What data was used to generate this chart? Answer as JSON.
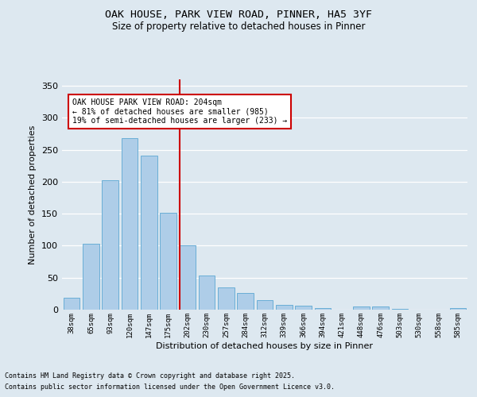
{
  "title1": "OAK HOUSE, PARK VIEW ROAD, PINNER, HA5 3YF",
  "title2": "Size of property relative to detached houses in Pinner",
  "xlabel": "Distribution of detached houses by size in Pinner",
  "ylabel": "Number of detached properties",
  "categories": [
    "38sqm",
    "65sqm",
    "93sqm",
    "120sqm",
    "147sqm",
    "175sqm",
    "202sqm",
    "230sqm",
    "257sqm",
    "284sqm",
    "312sqm",
    "339sqm",
    "366sqm",
    "394sqm",
    "421sqm",
    "448sqm",
    "476sqm",
    "503sqm",
    "530sqm",
    "558sqm",
    "585sqm"
  ],
  "values": [
    19,
    103,
    202,
    268,
    241,
    151,
    100,
    53,
    35,
    26,
    15,
    8,
    6,
    3,
    0,
    5,
    5,
    1,
    0,
    0,
    2
  ],
  "bar_color": "#aecde8",
  "bar_edge_color": "#6aaed6",
  "vline_color": "#cc0000",
  "annotation_title": "OAK HOUSE PARK VIEW ROAD: 204sqm",
  "annotation_line1": "← 81% of detached houses are smaller (985)",
  "annotation_line2": "19% of semi-detached houses are larger (233) →",
  "annotation_box_color": "#ffffff",
  "annotation_box_edge_color": "#cc0000",
  "ylim": [
    0,
    360
  ],
  "yticks": [
    0,
    50,
    100,
    150,
    200,
    250,
    300,
    350
  ],
  "background_color": "#dde8f0",
  "grid_color": "#ffffff",
  "footer1": "Contains HM Land Registry data © Crown copyright and database right 2025.",
  "footer2": "Contains public sector information licensed under the Open Government Licence v3.0."
}
